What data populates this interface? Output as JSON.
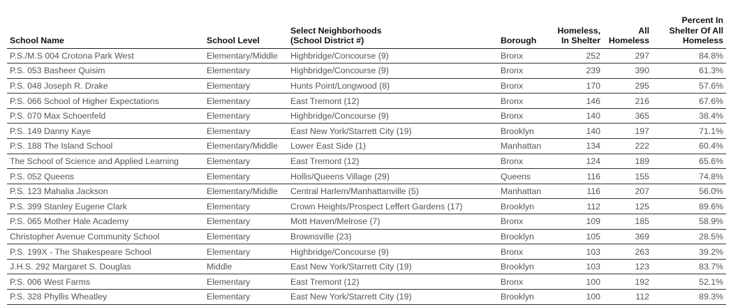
{
  "headers": {
    "school_name": "School Name",
    "school_level": "School Level",
    "neighborhood_line1": "Select Neighborhoods",
    "neighborhood_line2": "(School District #)",
    "borough": "Borough",
    "in_shelter_line1": "Homeless,",
    "in_shelter_line2": "In Shelter",
    "all_line1": "All",
    "all_line2": "Homeless",
    "pct_line1": "Percent In",
    "pct_line2": "Shelter Of All",
    "pct_line3": "Homeless"
  },
  "rows": [
    [
      "P.S./M.S 004 Crotona Park West",
      "Elementary/Middle",
      "Highbridge/Concourse (9)",
      "Bronx",
      "252",
      "297",
      "84.8%"
    ],
    [
      "P.S. 053 Basheer Quisim",
      "Elementary",
      "Highbridge/Concourse (9)",
      "Bronx",
      "239",
      "390",
      "61.3%"
    ],
    [
      "P.S. 048 Joseph R. Drake",
      "Elementary",
      "Hunts Point/Longwood (8)",
      "Bronx",
      "170",
      "295",
      "57.6%"
    ],
    [
      "P.S. 066 School of Higher Expectations",
      "Elementary",
      "East Tremont (12)",
      "Bronx",
      "146",
      "216",
      "67.6%"
    ],
    [
      "P.S. 070 Max Schoenfeld",
      "Elementary",
      "Highbridge/Concourse (9)",
      "Bronx",
      "140",
      "365",
      "38.4%"
    ],
    [
      "P.S. 149 Danny Kaye",
      "Elementary",
      "East New York/Starrett City (19)",
      "Brooklyn",
      "140",
      "197",
      "71.1%"
    ],
    [
      "P.S. 188 The Island School",
      "Elementary/Middle",
      "Lower East Side (1)",
      "Manhattan",
      "134",
      "222",
      "60.4%"
    ],
    [
      "The School of Science and Applied Learning",
      "Elementary",
      "East Tremont (12)",
      "Bronx",
      "124",
      "189",
      "65.6%"
    ],
    [
      "P.S. 052 Queens",
      "Elementary",
      "Hollis/Queens Village (29)",
      "Queens",
      "116",
      "155",
      "74.8%"
    ],
    [
      "P.S. 123 Mahalia Jackson",
      "Elementary/Middle",
      "Central Harlem/Manhattanville (5)",
      "Manhattan",
      "116",
      "207",
      "56.0%"
    ],
    [
      "P.S. 399 Stanley Eugene Clark",
      "Elementary",
      "Crown Heights/Prospect Leffert Gardens (17)",
      "Brooklyn",
      "112",
      "125",
      "89.6%"
    ],
    [
      "P.S. 065 Mother Hale Academy",
      "Elementary",
      "Mott Haven/Melrose (7)",
      "Bronx",
      "109",
      "185",
      "58.9%"
    ],
    [
      "Christopher Avenue Community School",
      "Elementary",
      "Brownsville (23)",
      "Brooklyn",
      "105",
      "369",
      "28.5%"
    ],
    [
      "P.S. 199X - The Shakespeare School",
      "Elementary",
      "Highbridge/Concourse (9)",
      "Bronx",
      "103",
      "263",
      "39.2%"
    ],
    [
      "J.H.S. 292 Margaret S. Douglas",
      "Middle",
      "East New York/Starrett City (19)",
      "Brooklyn",
      "103",
      "123",
      "83.7%"
    ],
    [
      "P.S. 006 West Farms",
      "Elementary",
      "East Tremont (12)",
      "Bronx",
      "100",
      "192",
      "52.1%"
    ],
    [
      "P.S. 328 Phyllis Wheatley",
      "Elementary",
      "East New York/Starrett City (19)",
      "Brooklyn",
      "100",
      "112",
      "89.3%"
    ]
  ]
}
